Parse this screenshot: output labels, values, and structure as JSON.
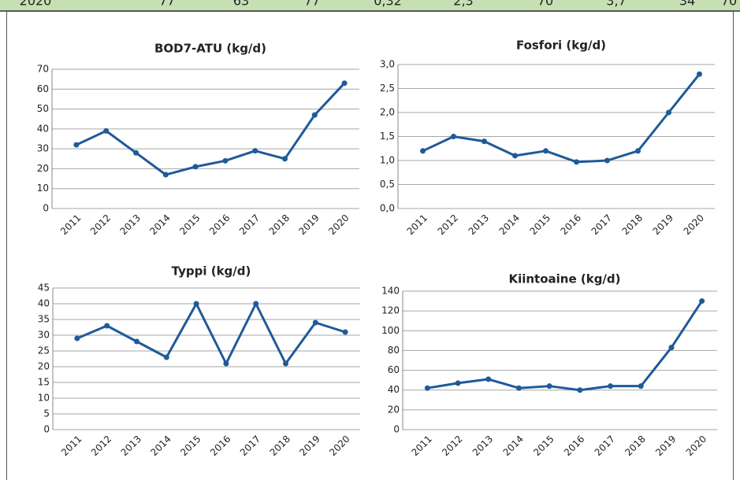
{
  "header_row": {
    "cells": [
      "2020",
      "77",
      "63",
      "77",
      "0,32",
      "2,3",
      "70",
      "3,7",
      "34",
      "70"
    ]
  },
  "chart_data": [
    {
      "type": "line",
      "title": "BOD7-ATU (kg/d)",
      "color": "#1f5a99",
      "grid": true,
      "categories": [
        "2011",
        "2012",
        "2013",
        "2014",
        "2015",
        "2016",
        "2017",
        "2018",
        "2019",
        "2020"
      ],
      "values": [
        32,
        39,
        28,
        17,
        21,
        24,
        29,
        25,
        47,
        63
      ],
      "ylim": [
        0,
        70
      ],
      "yticks": [
        0,
        10,
        20,
        30,
        40,
        50,
        60,
        70
      ]
    },
    {
      "type": "line",
      "title": "Fosfori (kg/d)",
      "color": "#1f5a99",
      "grid": true,
      "categories": [
        "2011",
        "2012",
        "2013",
        "2014",
        "2015",
        "2016",
        "2017",
        "2018",
        "2019",
        "2020"
      ],
      "values": [
        1.2,
        1.5,
        1.4,
        1.1,
        1.2,
        0.97,
        1.0,
        1.2,
        2.0,
        2.8
      ],
      "ylim": [
        0,
        3
      ],
      "yticks": [
        {
          "value": 0,
          "label": "0,0"
        },
        {
          "value": 0.5,
          "label": "0,5"
        },
        {
          "value": 1,
          "label": "1,0"
        },
        {
          "value": 1.5,
          "label": "1,5"
        },
        {
          "value": 2,
          "label": "2,0"
        },
        {
          "value": 2.5,
          "label": "2,5"
        },
        {
          "value": 3,
          "label": "3,0"
        }
      ]
    },
    {
      "type": "line",
      "title": "Typpi (kg/d)",
      "color": "#1f5a99",
      "grid": true,
      "categories": [
        "2011",
        "2012",
        "2013",
        "2014",
        "2015",
        "2016",
        "2017",
        "2018",
        "2019",
        "2020"
      ],
      "values": [
        29,
        33,
        28,
        23,
        40,
        21,
        40,
        21,
        34,
        31
      ],
      "ylim": [
        0,
        45
      ],
      "yticks": [
        0,
        5,
        10,
        15,
        20,
        25,
        30,
        35,
        40,
        45
      ]
    },
    {
      "type": "line",
      "title": "Kiintoaine (kg/d)",
      "color": "#1f5a99",
      "grid": true,
      "categories": [
        "2011",
        "2012",
        "2013",
        "2014",
        "2015",
        "2016",
        "2017",
        "2018",
        "2019",
        "2020"
      ],
      "values": [
        42,
        47,
        51,
        42,
        44,
        40,
        44,
        44,
        83,
        130
      ],
      "ylim": [
        0,
        140
      ],
      "yticks": [
        0,
        20,
        40,
        60,
        80,
        100,
        120,
        140
      ]
    }
  ]
}
